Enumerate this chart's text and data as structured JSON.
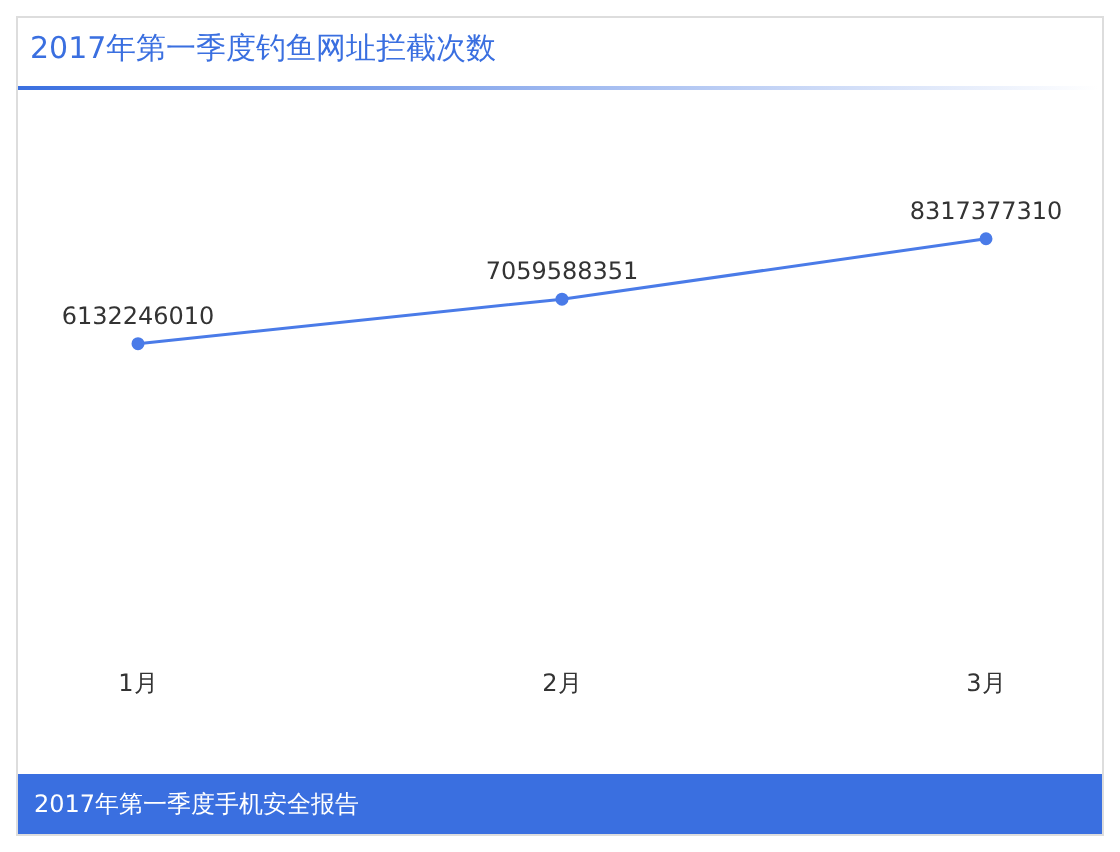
{
  "chart_data": {
    "type": "line",
    "title": "2017年第一季度钓鱼网址拦截次数",
    "categories": [
      "1月",
      "2月",
      "3月"
    ],
    "series": [
      {
        "color": "#4a7be8",
        "values": [
          6132246010,
          7059588351,
          8317377310
        ]
      }
    ],
    "data_labels": true,
    "marker": "circle",
    "grid": false,
    "legend": false,
    "annotations": [
      "2017年第一季度手机安全报告"
    ]
  }
}
